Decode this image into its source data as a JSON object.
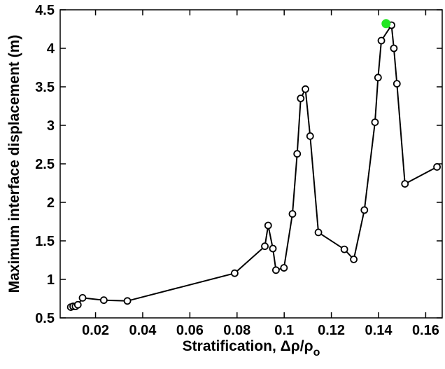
{
  "chart_data": {
    "type": "line",
    "title": "",
    "xlabel": "Stratification, Δρ/ρ",
    "xlabel_subscript": "o",
    "ylabel": "Maximum interface displacement (m)",
    "xlim": [
      0.005,
      0.167
    ],
    "ylim": [
      0.5,
      4.5
    ],
    "xticks": [
      0.02,
      0.04,
      0.06,
      0.08,
      0.1,
      0.12,
      0.14,
      0.16
    ],
    "xtick_labels": [
      "0.02",
      "0.04",
      "0.06",
      "0.08",
      "0.1",
      "0.12",
      "0.14",
      "0.16"
    ],
    "yticks": [
      0.5,
      1,
      1.5,
      2,
      2.5,
      3,
      3.5,
      4,
      4.5
    ],
    "ytick_labels": [
      "0.5",
      "1",
      "1.5",
      "2",
      "2.5",
      "3",
      "3.5",
      "4",
      "4.5"
    ],
    "grid": false,
    "series": [
      {
        "marker": "open-circle",
        "color": "#000000",
        "x": [
          0.0095,
          0.0105,
          0.0115,
          0.0125,
          0.0145,
          0.0235,
          0.0335,
          0.079,
          0.0918,
          0.0932,
          0.0952,
          0.0965,
          0.0999,
          0.1035,
          0.1055,
          0.107,
          0.109,
          0.111,
          0.1145,
          0.1255,
          0.1295,
          0.134,
          0.1385,
          0.1398,
          0.1412,
          0.1455,
          0.1465,
          0.1478,
          0.1512,
          0.1648
        ],
        "y": [
          0.64,
          0.65,
          0.65,
          0.67,
          0.76,
          0.73,
          0.72,
          1.08,
          1.43,
          1.7,
          1.4,
          1.12,
          1.15,
          1.85,
          2.63,
          3.35,
          3.47,
          2.86,
          1.61,
          1.39,
          1.26,
          1.9,
          3.04,
          3.62,
          4.1,
          4.3,
          4.0,
          3.54,
          2.24,
          2.46
        ]
      }
    ],
    "highlight": {
      "x": 0.1432,
      "y": 4.32,
      "color": "#22e622"
    }
  }
}
